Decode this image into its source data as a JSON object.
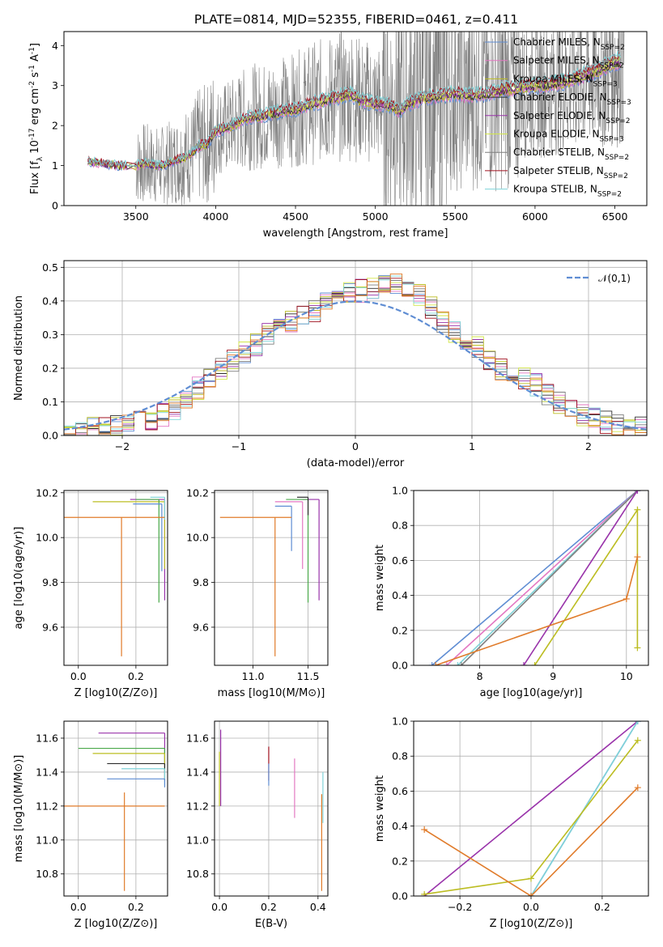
{
  "figure_title": "PLATE=0814, MJD=52355, FIBERID=0461, z=0.411",
  "chart_data": [
    {
      "id": "spectrum",
      "type": "line",
      "xlabel": "wavelength [Angstrom, rest frame]",
      "ylabel": "Flux [f_λ 10^-17 erg cm^-2 s^-1 A^-1]",
      "xlim": [
        3050,
        6700
      ],
      "ylim": [
        0,
        4.35
      ],
      "xticks": [
        3500,
        4000,
        4500,
        5000,
        5500,
        6000,
        6500
      ],
      "yticks": [
        0,
        1,
        2,
        3,
        4
      ],
      "grid": false,
      "legend_position": "top-right",
      "legend": [
        "Chabrier MILES, N_SSP=2",
        "Salpeter MILES, N_SSP=2",
        "Kroupa MILES, N_SSP=3",
        "Chabrier ELODIE, N_SSP=3",
        "Salpeter ELODIE, N_SSP=2",
        "Kroupa ELODIE, N_SSP=3",
        "Chabrier STELIB, N_SSP=2",
        "Salpeter STELIB, N_SSP=2",
        "Kroupa STELIB, N_SSP=2"
      ],
      "colors": [
        "#5f8dd3",
        "#e377c2",
        "#bcbd22",
        "#2d2d2d",
        "#9933aa",
        "#d2e64a",
        "#7f7f7f",
        "#a0101f",
        "#7fd3d8"
      ],
      "model_x": [
        3200,
        3300,
        3400,
        3500,
        3550,
        3650,
        3700,
        3800,
        3850,
        3900,
        3950,
        4000,
        4100,
        4200,
        4300,
        4400,
        4500,
        4600,
        4700,
        4800,
        4850,
        4900,
        5000,
        5100,
        5150,
        5200,
        5250,
        5300,
        5400,
        5500,
        5600,
        5700,
        5800,
        5900,
        6000,
        6100,
        6200,
        6300,
        6400,
        6500
      ],
      "model_y": [
        1.1,
        1.05,
        1.0,
        1.0,
        1.05,
        1.0,
        1.05,
        1.2,
        1.3,
        1.5,
        1.55,
        1.85,
        2.0,
        2.2,
        2.25,
        2.35,
        2.4,
        2.55,
        2.65,
        2.75,
        2.8,
        2.65,
        2.55,
        2.5,
        2.35,
        2.55,
        2.6,
        2.7,
        2.75,
        2.8,
        2.75,
        2.8,
        2.9,
        2.95,
        3.0,
        3.05,
        3.1,
        3.25,
        3.4,
        3.6
      ]
    },
    {
      "id": "residuals",
      "type": "line",
      "xlabel": "(data-model)/error",
      "ylabel": "Normed distribution",
      "xlim": [
        -2.5,
        2.5
      ],
      "ylim": [
        0,
        0.52
      ],
      "xticks": [
        -2,
        -1,
        0,
        1,
        2
      ],
      "yticks": [
        0.0,
        0.1,
        0.2,
        0.3,
        0.4,
        0.5
      ],
      "grid": true,
      "legend_position": "top-right",
      "gaussian_label": "𝒩(0,1)",
      "gaussian_color": "#5f8dd3",
      "bin_width": 0.1,
      "hist_start": -2.5,
      "hist_values": [
        0.01,
        0.01,
        0.02,
        0.02,
        0.03,
        0.03,
        0.04,
        0.05,
        0.06,
        0.08,
        0.1,
        0.14,
        0.17,
        0.2,
        0.22,
        0.25,
        0.27,
        0.3,
        0.32,
        0.34,
        0.35,
        0.37,
        0.4,
        0.42,
        0.43,
        0.43,
        0.44,
        0.46,
        0.45,
        0.44,
        0.42,
        0.38,
        0.34,
        0.31,
        0.29,
        0.26,
        0.23,
        0.2,
        0.18,
        0.17,
        0.15,
        0.12,
        0.1,
        0.08,
        0.06,
        0.05,
        0.04,
        0.03,
        0.02,
        0.02
      ],
      "hist_colors": [
        "#5f8dd3",
        "#e377c2",
        "#bcbd22",
        "#2d2d2d",
        "#9933aa",
        "#d2e64a",
        "#7f7f7f",
        "#a0101f",
        "#7fd3d8",
        "#e07b2a"
      ]
    },
    {
      "id": "age_vs_Z",
      "type": "scatter",
      "xlabel": "Z [log10(Z/Z⊙)]",
      "ylabel": "age [log10(age/yr)]",
      "xlim": [
        -0.05,
        0.31
      ],
      "ylim": [
        9.43,
        10.21
      ],
      "xticks": [
        0.0,
        0.2
      ],
      "yticks": [
        9.6,
        9.8,
        10.0,
        10.2
      ],
      "grid": true,
      "errorbars": [
        {
          "x": 0.3,
          "y": 10.17,
          "xerr_lo": 0.12,
          "yerr_lo": 0.45,
          "color": "#9933aa"
        },
        {
          "x": 0.3,
          "y": 10.16,
          "xerr_lo": 0.25,
          "yerr_lo": 0.3,
          "color": "#bcbd22"
        },
        {
          "x": 0.28,
          "y": 10.17,
          "xerr_lo": 0.08,
          "yerr_lo": 0.46,
          "color": "#4aa84a"
        },
        {
          "x": 0.29,
          "y": 10.15,
          "xerr_lo": 0.1,
          "yerr_lo": 0.3,
          "color": "#5f8dd3"
        },
        {
          "x": 0.3,
          "y": 10.18,
          "xerr_lo": 0.05,
          "yerr_lo": 0.1,
          "color": "#7fd3d8"
        },
        {
          "x": 0.15,
          "y": 10.09,
          "xerr_lo": 0.2,
          "xerr_hi": 0.15,
          "yerr_lo": 0.62,
          "color": "#e07b2a"
        }
      ]
    },
    {
      "id": "age_vs_mass",
      "type": "scatter",
      "xlabel": "mass [log10(M/M⊙)]",
      "ylabel": "",
      "xlim": [
        10.65,
        11.68
      ],
      "ylim": [
        9.43,
        10.21
      ],
      "xticks": [
        11.0,
        11.5
      ],
      "yticks": [
        9.6,
        9.8,
        10.0,
        10.2
      ],
      "grid": true,
      "errorbars": [
        {
          "x": 11.6,
          "y": 10.17,
          "xerr_lo": 0.15,
          "yerr_lo": 0.45,
          "color": "#9933aa"
        },
        {
          "x": 11.5,
          "y": 10.17,
          "xerr_lo": 0.2,
          "yerr_lo": 0.46,
          "color": "#4aa84a"
        },
        {
          "x": 11.45,
          "y": 10.16,
          "xerr_lo": 0.25,
          "yerr_lo": 0.3,
          "color": "#e377c2"
        },
        {
          "x": 11.35,
          "y": 10.14,
          "xerr_lo": 0.15,
          "yerr_lo": 0.2,
          "color": "#5f8dd3"
        },
        {
          "x": 11.5,
          "y": 10.18,
          "xerr_lo": 0.1,
          "yerr_lo": 0.08,
          "color": "#2d2d2d"
        },
        {
          "x": 11.2,
          "y": 10.09,
          "xerr_lo": 0.5,
          "xerr_hi": 0.15,
          "yerr_lo": 0.62,
          "color": "#e07b2a"
        }
      ]
    },
    {
      "id": "weight_vs_age",
      "type": "line",
      "xlabel": "age [log10(age/yr)]",
      "ylabel": "mass weight",
      "xlim": [
        7.1,
        10.3
      ],
      "ylim": [
        0.0,
        1.0
      ],
      "xticks": [
        8,
        9,
        10
      ],
      "yticks": [
        0.0,
        0.2,
        0.4,
        0.6,
        0.8,
        1.0
      ],
      "grid": true,
      "series": [
        {
          "x": [
            7.35,
            10.15
          ],
          "y": [
            0.0,
            1.0
          ],
          "color": "#5f8dd3"
        },
        {
          "x": [
            7.55,
            10.15
          ],
          "y": [
            0.0,
            1.0
          ],
          "color": "#e377c2"
        },
        {
          "x": [
            7.7,
            10.15
          ],
          "y": [
            0.0,
            1.0
          ],
          "color": "#7fd3d8"
        },
        {
          "x": [
            7.75,
            10.15
          ],
          "y": [
            0.0,
            1.0
          ],
          "color": "#7f7f7f"
        },
        {
          "x": [
            8.6,
            10.15
          ],
          "y": [
            0.0,
            1.0
          ],
          "color": "#9933aa"
        },
        {
          "x": [
            8.75,
            10.15,
            10.15
          ],
          "y": [
            0.0,
            0.89,
            0.1
          ],
          "color": "#bcbd22"
        },
        {
          "x": [
            7.4,
            10.0,
            10.15
          ],
          "y": [
            0.0,
            0.38,
            0.62
          ],
          "color": "#e07b2a"
        }
      ]
    },
    {
      "id": "mass_vs_Z",
      "type": "scatter",
      "xlabel": "Z [log10(Z/Z⊙)]",
      "ylabel": "mass [log10(M/M⊙)]",
      "xlim": [
        -0.05,
        0.31
      ],
      "ylim": [
        10.67,
        11.7
      ],
      "xticks": [
        0.0,
        0.2
      ],
      "yticks": [
        10.8,
        11.0,
        11.2,
        11.4,
        11.6
      ],
      "grid": true,
      "errorbars": [
        {
          "x": 0.3,
          "y": 11.63,
          "xerr_lo": 0.23,
          "yerr_lo": 0.2,
          "color": "#9933aa"
        },
        {
          "x": 0.3,
          "y": 11.54,
          "xerr_lo": 0.3,
          "yerr_lo": 0.08,
          "color": "#4aa84a"
        },
        {
          "x": 0.3,
          "y": 11.51,
          "xerr_lo": 0.25,
          "yerr_lo": 0.1,
          "color": "#bcbd22"
        },
        {
          "x": 0.3,
          "y": 11.45,
          "xerr_lo": 0.2,
          "yerr_lo": 0.1,
          "color": "#2d2d2d"
        },
        {
          "x": 0.3,
          "y": 11.42,
          "xerr_lo": 0.15,
          "yerr_lo": 0.1,
          "color": "#7fd3d8"
        },
        {
          "x": 0.3,
          "y": 11.36,
          "xerr_lo": 0.2,
          "yerr_lo": 0.05,
          "color": "#5f8dd3"
        },
        {
          "x": 0.16,
          "y": 11.2,
          "xerr_lo": 0.25,
          "xerr_hi": 0.14,
          "yerr_lo": 0.5,
          "yerr_hi": 0.08,
          "color": "#e07b2a"
        }
      ]
    },
    {
      "id": "mass_vs_ebv",
      "type": "scatter",
      "xlabel": "E(B-V)",
      "ylabel": "",
      "xlim": [
        -0.02,
        0.44
      ],
      "ylim": [
        10.67,
        11.7
      ],
      "xticks": [
        0.0,
        0.2,
        0.4
      ],
      "yticks": [
        10.8,
        11.0,
        11.2,
        11.4,
        11.6
      ],
      "grid": true,
      "errorbars": [
        {
          "x": 0.005,
          "y": 11.45,
          "yerr_lo": 0.25,
          "yerr_hi": 0.2,
          "color": "#9933aa"
        },
        {
          "x": 0.0,
          "y": 11.4,
          "yerr_lo": 0.2,
          "yerr_hi": 0.12,
          "color": "#bcbd22"
        },
        {
          "x": 0.2,
          "y": 11.45,
          "yerr_lo": 0.1,
          "yerr_hi": 0.1,
          "color": "#a0101f"
        },
        {
          "x": 0.2,
          "y": 11.4,
          "yerr_lo": 0.08,
          "yerr_hi": 0.05,
          "color": "#5f8dd3"
        },
        {
          "x": 0.305,
          "y": 11.3,
          "yerr_lo": 0.17,
          "yerr_hi": 0.18,
          "color": "#e377c2"
        },
        {
          "x": 0.42,
          "y": 11.3,
          "yerr_lo": 0.2,
          "yerr_hi": 0.1,
          "color": "#7fd3d8"
        },
        {
          "x": 0.415,
          "y": 11.0,
          "yerr_lo": 0.3,
          "yerr_hi": 0.27,
          "color": "#e07b2a"
        }
      ]
    },
    {
      "id": "weight_vs_Z",
      "type": "line",
      "xlabel": "Z [log10(Z/Z⊙)]",
      "ylabel": "mass weight",
      "xlim": [
        -0.33,
        0.33
      ],
      "ylim": [
        0.0,
        1.0
      ],
      "xticks": [
        -0.2,
        0.0,
        0.2
      ],
      "yticks": [
        0.0,
        0.2,
        0.4,
        0.6,
        0.8,
        1.0
      ],
      "grid": true,
      "series": [
        {
          "x": [
            -0.3,
            0.3
          ],
          "y": [
            0.0,
            1.0
          ],
          "color": "#9933aa"
        },
        {
          "x": [
            0.0,
            0.3
          ],
          "y": [
            0.0,
            1.0
          ],
          "color": "#5f8dd3"
        },
        {
          "x": [
            0.0,
            0.3
          ],
          "y": [
            0.0,
            1.0
          ],
          "color": "#7fd3d8"
        },
        {
          "x": [
            -0.3,
            0.0,
            0.3
          ],
          "y": [
            0.01,
            0.1,
            0.89
          ],
          "color": "#bcbd22"
        },
        {
          "x": [
            -0.3,
            0.0,
            0.3
          ],
          "y": [
            0.38,
            0.0,
            0.62
          ],
          "color": "#e07b2a"
        }
      ]
    }
  ]
}
